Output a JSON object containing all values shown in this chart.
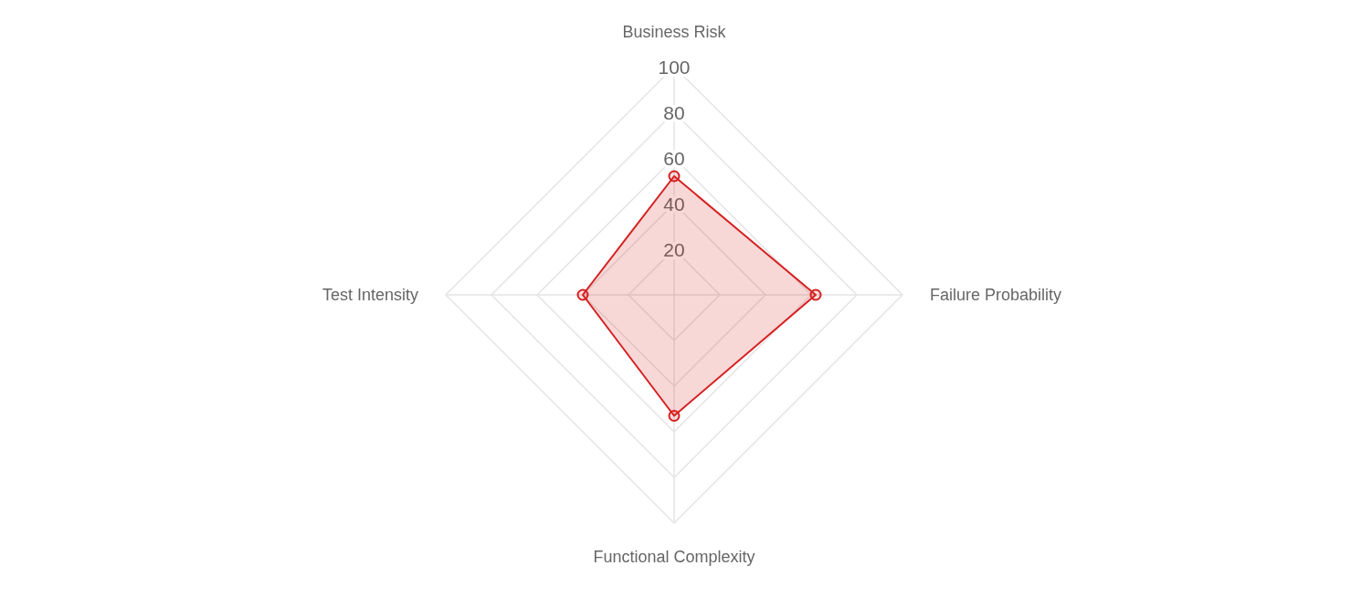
{
  "chart_data": {
    "type": "radar",
    "categories": [
      "Business Risk",
      "Failure Probability",
      "Functional Complexity",
      "Test Intensity"
    ],
    "series": [
      {
        "color": "#d62020",
        "values": [
          52,
          62,
          53,
          40
        ]
      }
    ],
    "ylim": [
      0,
      100
    ],
    "yticks": [
      20,
      40,
      60,
      80,
      100
    ],
    "grid": true,
    "marker": "circle",
    "line_style": "solid"
  }
}
